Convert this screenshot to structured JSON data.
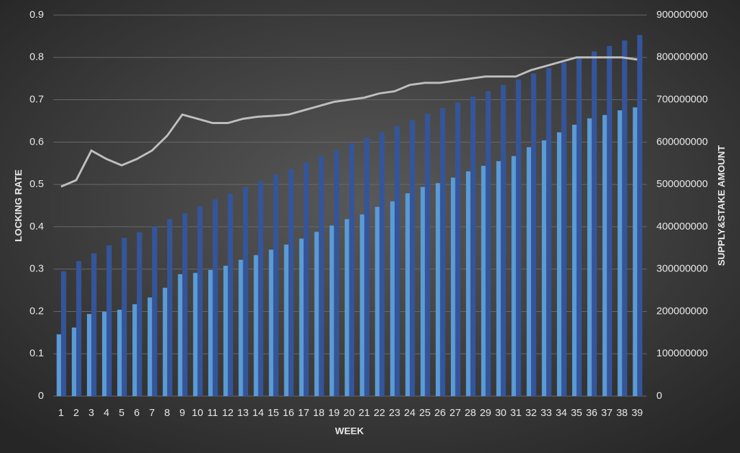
{
  "chart_data": {
    "type": "bar-line",
    "x_label": "WEEK",
    "y_label": "LOCKING RATE",
    "y2_label": "SUPPLY&STAKE  AMOUNT",
    "categories": [
      "1",
      "2",
      "3",
      "4",
      "5",
      "6",
      "7",
      "8",
      "9",
      "10",
      "11",
      "12",
      "13",
      "14",
      "15",
      "16",
      "17",
      "18",
      "19",
      "20",
      "21",
      "22",
      "23",
      "24",
      "25",
      "26",
      "27",
      "28",
      "29",
      "30",
      "31",
      "32",
      "33",
      "34",
      "35",
      "36",
      "37",
      "38",
      "39"
    ],
    "series": [
      {
        "type": "bar",
        "axis": "y2",
        "color": "#5b9bd5",
        "values": [
          146000000,
          162000000,
          194000000,
          199000000,
          204000000,
          217000000,
          233000000,
          256000000,
          288000000,
          291000000,
          298000000,
          308000000,
          322000000,
          333000000,
          346000000,
          358000000,
          372000000,
          388000000,
          403000000,
          418000000,
          429000000,
          447000000,
          460000000,
          479000000,
          494000000,
          503000000,
          516000000,
          531000000,
          544000000,
          555000000,
          567000000,
          588000000,
          604000000,
          623000000,
          641000000,
          656000000,
          664000000,
          675000000,
          682000000
        ]
      },
      {
        "type": "bar",
        "axis": "y2",
        "color": "#34559a",
        "values": [
          295000000,
          319000000,
          337000000,
          356000000,
          374000000,
          387000000,
          401000000,
          418000000,
          432000000,
          448000000,
          465000000,
          478000000,
          494000000,
          508000000,
          523000000,
          536000000,
          552000000,
          567000000,
          581000000,
          597000000,
          610000000,
          623000000,
          638000000,
          652000000,
          667000000,
          680000000,
          694000000,
          707000000,
          720000000,
          735000000,
          748000000,
          762000000,
          775000000,
          788000000,
          800000000,
          814000000,
          827000000,
          840000000,
          853000000
        ]
      },
      {
        "type": "line",
        "axis": "y",
        "color": "#bfbfbf",
        "values": [
          0.495,
          0.51,
          0.58,
          0.56,
          0.545,
          0.56,
          0.58,
          0.615,
          0.665,
          0.655,
          0.645,
          0.645,
          0.655,
          0.66,
          0.662,
          0.665,
          0.675,
          0.685,
          0.695,
          0.7,
          0.705,
          0.715,
          0.72,
          0.735,
          0.74,
          0.74,
          0.745,
          0.75,
          0.755,
          0.755,
          0.755,
          0.77,
          0.78,
          0.79,
          0.8,
          0.8,
          0.8,
          0.8,
          0.795
        ]
      }
    ],
    "ylim": [
      0,
      0.9
    ],
    "yticks": [
      0,
      0.1,
      0.2,
      0.3,
      0.4,
      0.5,
      0.6,
      0.7,
      0.8,
      0.9
    ],
    "y2lim": [
      0,
      900000000
    ],
    "y2ticks": [
      0,
      100000000,
      200000000,
      300000000,
      400000000,
      500000000,
      600000000,
      700000000,
      800000000,
      900000000
    ],
    "grid": true
  }
}
